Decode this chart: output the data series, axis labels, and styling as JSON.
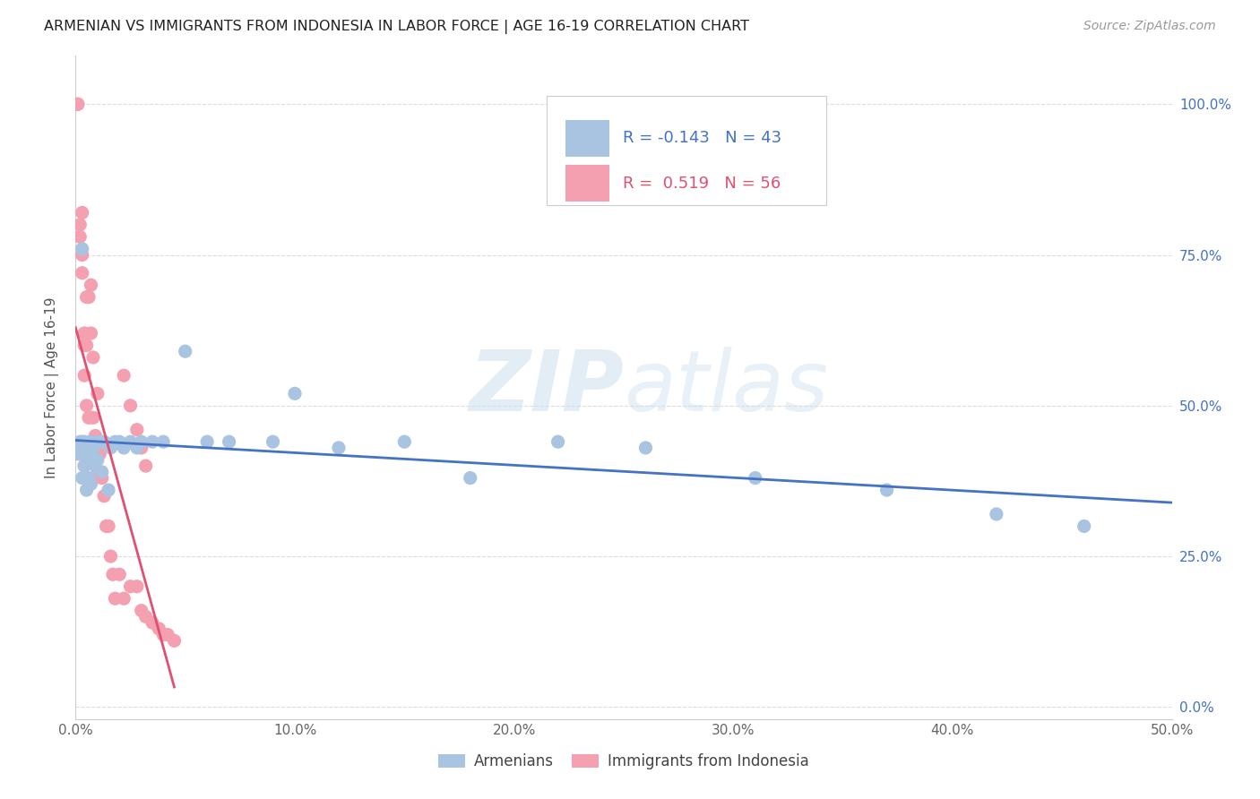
{
  "title": "ARMENIAN VS IMMIGRANTS FROM INDONESIA IN LABOR FORCE | AGE 16-19 CORRELATION CHART",
  "source": "Source: ZipAtlas.com",
  "ylabel": "In Labor Force | Age 16-19",
  "xlim": [
    0.0,
    0.5
  ],
  "ylim": [
    -0.02,
    1.08
  ],
  "watermark": "ZIPatlas",
  "legend_R_armenian": "-0.143",
  "legend_N_armenian": "43",
  "legend_R_indonesia": "0.519",
  "legend_N_indonesia": "56",
  "color_armenian": "#a8c4e0",
  "color_indonesia": "#f4a0b0",
  "line_color_armenian": "#4472c4",
  "line_color_indonesia": "#e05070",
  "armenian_x": [
    0.001,
    0.002,
    0.003,
    0.003,
    0.004,
    0.004,
    0.005,
    0.005,
    0.006,
    0.006,
    0.007,
    0.007,
    0.008,
    0.009,
    0.01,
    0.011,
    0.012,
    0.013,
    0.015,
    0.016,
    0.018,
    0.02,
    0.022,
    0.025,
    0.028,
    0.03,
    0.035,
    0.04,
    0.05,
    0.06,
    0.07,
    0.09,
    0.1,
    0.12,
    0.15,
    0.18,
    0.22,
    0.26,
    0.31,
    0.37,
    0.42,
    0.46,
    0.003
  ],
  "armenian_y": [
    0.42,
    0.44,
    0.43,
    0.38,
    0.44,
    0.4,
    0.42,
    0.36,
    0.41,
    0.38,
    0.44,
    0.37,
    0.43,
    0.4,
    0.41,
    0.44,
    0.39,
    0.44,
    0.36,
    0.43,
    0.44,
    0.44,
    0.43,
    0.44,
    0.43,
    0.44,
    0.44,
    0.44,
    0.59,
    0.44,
    0.44,
    0.44,
    0.52,
    0.43,
    0.44,
    0.38,
    0.44,
    0.43,
    0.38,
    0.36,
    0.32,
    0.3,
    0.76
  ],
  "indonesia_x": [
    0.001,
    0.001,
    0.002,
    0.002,
    0.002,
    0.003,
    0.003,
    0.003,
    0.003,
    0.003,
    0.003,
    0.004,
    0.004,
    0.004,
    0.004,
    0.005,
    0.005,
    0.005,
    0.005,
    0.006,
    0.006,
    0.006,
    0.007,
    0.007,
    0.007,
    0.008,
    0.008,
    0.008,
    0.009,
    0.009,
    0.01,
    0.01,
    0.011,
    0.012,
    0.013,
    0.014,
    0.015,
    0.016,
    0.017,
    0.018,
    0.02,
    0.022,
    0.025,
    0.028,
    0.03,
    0.032,
    0.035,
    0.038,
    0.04,
    0.042,
    0.045,
    0.022,
    0.025,
    0.028,
    0.03,
    0.032
  ],
  "indonesia_y": [
    1.0,
    1.0,
    0.8,
    0.78,
    0.42,
    0.82,
    0.75,
    0.72,
    0.44,
    0.43,
    0.42,
    0.62,
    0.6,
    0.55,
    0.4,
    0.68,
    0.6,
    0.5,
    0.43,
    0.68,
    0.48,
    0.42,
    0.7,
    0.62,
    0.44,
    0.58,
    0.48,
    0.38,
    0.45,
    0.38,
    0.52,
    0.44,
    0.42,
    0.38,
    0.35,
    0.3,
    0.3,
    0.25,
    0.22,
    0.18,
    0.22,
    0.18,
    0.2,
    0.2,
    0.16,
    0.15,
    0.14,
    0.13,
    0.12,
    0.12,
    0.11,
    0.55,
    0.5,
    0.46,
    0.43,
    0.4
  ]
}
